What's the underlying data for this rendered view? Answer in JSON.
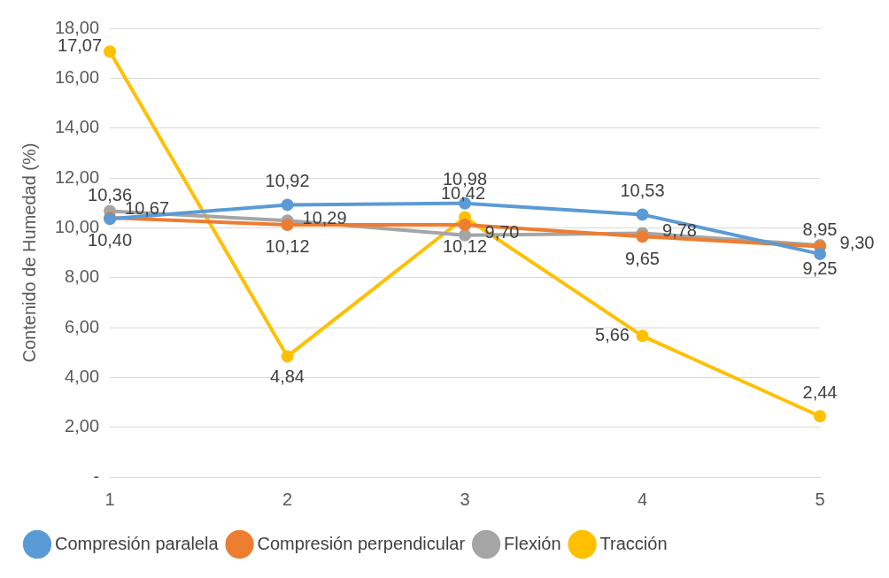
{
  "chart_data": {
    "type": "line",
    "ylabel": "Contenido de Humedad (%)",
    "categories": [
      "1",
      "2",
      "3",
      "4",
      "5"
    ],
    "series": [
      {
        "name": "Compresión paralela",
        "color": "#5b9bd5",
        "values": [
          10.36,
          10.92,
          10.98,
          10.53,
          8.95
        ],
        "value_labels": [
          "10,36",
          "10,92",
          "10,98",
          "10,53",
          "8,95"
        ]
      },
      {
        "name": "Compresión perpendicular",
        "color": "#ed7d31",
        "values": [
          10.4,
          10.12,
          10.12,
          9.65,
          9.25
        ],
        "value_labels": [
          "10,40",
          "10,12",
          "10,12",
          "9,65",
          "9,25"
        ]
      },
      {
        "name": "Flexión",
        "color": "#a5a5a5",
        "values": [
          10.67,
          10.29,
          9.7,
          9.78,
          9.3
        ],
        "value_labels": [
          "10,67",
          "10,29",
          "9,70",
          "9,78",
          "9,30"
        ]
      },
      {
        "name": "Tracción",
        "color": "#ffc000",
        "values": [
          17.07,
          4.84,
          10.42,
          5.66,
          2.44
        ],
        "value_labels": [
          "17,07",
          "4,84",
          "10,42",
          "5,66",
          "2,44"
        ]
      }
    ],
    "ylim": [
      0,
      18
    ],
    "yticks": [
      {
        "value": 0,
        "label": "-"
      },
      {
        "value": 2,
        "label": "2,00"
      },
      {
        "value": 4,
        "label": "4,00"
      },
      {
        "value": 6,
        "label": "6,00"
      },
      {
        "value": 8,
        "label": "8,00"
      },
      {
        "value": 10,
        "label": "10,00"
      },
      {
        "value": 12,
        "label": "12,00"
      },
      {
        "value": 14,
        "label": "14,00"
      },
      {
        "value": 16,
        "label": "16,00"
      },
      {
        "value": 18,
        "label": "18,00"
      }
    ],
    "grid": "y",
    "legend": "bottom",
    "marker": "circle",
    "line_style": "solid"
  }
}
